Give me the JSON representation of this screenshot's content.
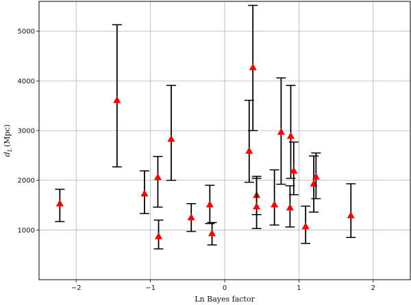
{
  "chart_data": {
    "type": "scatter",
    "title": "",
    "xlabel": "Ln Bayes factor",
    "ylabel_main": "d",
    "ylabel_sub": "L",
    "ylabel_unit": "(Mpc)",
    "xlim": [
      -2.5,
      2.5
    ],
    "ylim": [
      0,
      5600
    ],
    "xticks": [
      -2,
      -1,
      0,
      1,
      2
    ],
    "xtick_labels": [
      "−2",
      "−1",
      "0",
      "1",
      "2"
    ],
    "yticks": [
      1000,
      2000,
      3000,
      4000,
      5000
    ],
    "ytick_labels": [
      "1000",
      "2000",
      "3000",
      "4000",
      "5000"
    ],
    "grid": true,
    "marker_color": "#ff0000",
    "errorbar_color": "#000000",
    "series": [
      {
        "x": [
          -2.22,
          -1.45,
          -1.08,
          -0.9,
          -0.89,
          -0.72,
          -0.45,
          -0.2,
          -0.17,
          0.33,
          0.38,
          0.43,
          0.43,
          0.67,
          0.76,
          0.88,
          0.89,
          0.93,
          1.09,
          1.2,
          1.23,
          1.7
        ],
        "y": [
          1530,
          3610,
          1730,
          2060,
          870,
          2830,
          1250,
          1510,
          930,
          2590,
          4270,
          1700,
          1470,
          1510,
          2970,
          1450,
          2890,
          2190,
          1070,
          1930,
          2070,
          1290
        ],
        "y_low": [
          1170,
          2270,
          1330,
          1460,
          620,
          2000,
          970,
          1130,
          700,
          1960,
          3000,
          1310,
          1030,
          1100,
          1920,
          1060,
          2040,
          1710,
          730,
          1360,
          1630,
          850
        ],
        "y_high": [
          1820,
          5130,
          2190,
          2480,
          1200,
          3910,
          1530,
          1900,
          1150,
          3610,
          5520,
          2040,
          2080,
          2210,
          4060,
          1890,
          3910,
          2770,
          1480,
          2490,
          2550,
          1930
        ]
      }
    ]
  }
}
